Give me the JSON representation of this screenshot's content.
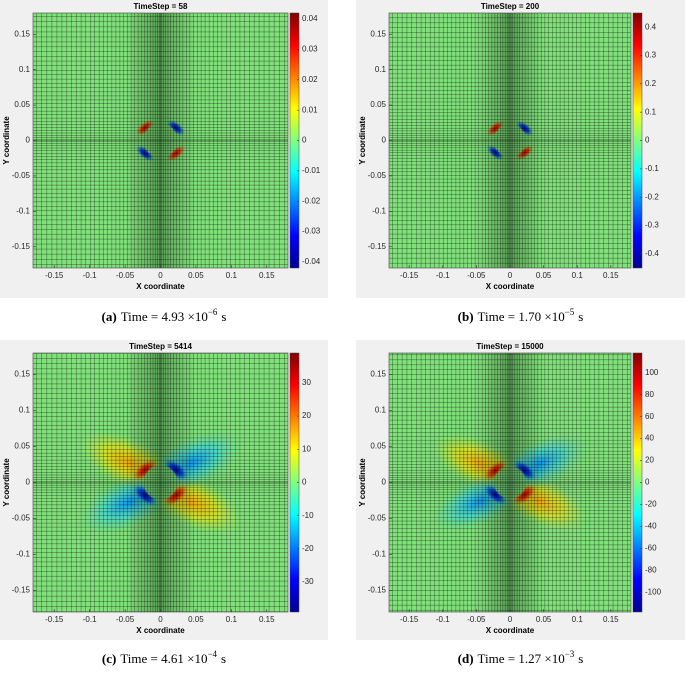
{
  "chart_data": [
    {
      "type": "field",
      "title": "TimeStep = 58",
      "xlabel": "X coordinate",
      "ylabel": "Y coordinate",
      "xlim": [
        -0.18,
        0.18
      ],
      "xticks": [
        -0.15,
        -0.1,
        -0.05,
        0,
        0.05,
        0.1,
        0.15
      ],
      "ylim": [
        -0.18,
        0.18
      ],
      "yticks": [
        -0.15,
        -0.1,
        -0.05,
        0,
        0.05,
        0.1,
        0.15
      ],
      "clim": [
        -0.042,
        0.042
      ],
      "cticks": [
        -0.04,
        -0.03,
        -0.02,
        -0.01,
        0,
        0.01,
        0.02,
        0.03,
        0.04
      ],
      "caption": {
        "label": "(a)",
        "text": "Time = 4.93 ×10",
        "exponent": "−6",
        "unit": "s"
      }
    },
    {
      "type": "field",
      "title": "TimeStep = 200",
      "xlabel": "X coordinate",
      "ylabel": "Y coordinate",
      "xlim": [
        -0.18,
        0.18
      ],
      "xticks": [
        -0.15,
        -0.1,
        -0.05,
        0,
        0.05,
        0.1,
        0.15
      ],
      "ylim": [
        -0.18,
        0.18
      ],
      "yticks": [
        -0.15,
        -0.1,
        -0.05,
        0,
        0.05,
        0.1,
        0.15
      ],
      "clim": [
        -0.45,
        0.45
      ],
      "cticks": [
        -0.4,
        -0.3,
        -0.2,
        -0.1,
        0,
        0.1,
        0.2,
        0.3,
        0.4
      ],
      "caption": {
        "label": "(b)",
        "text": "Time = 1.70 ×10",
        "exponent": "−5",
        "unit": "s"
      }
    },
    {
      "type": "field",
      "title": "TimeStep = 5414",
      "xlabel": "X coordinate",
      "ylabel": "Y coordinate",
      "xlim": [
        -0.18,
        0.18
      ],
      "xticks": [
        -0.15,
        -0.1,
        -0.05,
        0,
        0.05,
        0.1,
        0.15
      ],
      "ylim": [
        -0.18,
        0.18
      ],
      "yticks": [
        -0.15,
        -0.1,
        -0.05,
        0,
        0.05,
        0.1,
        0.15
      ],
      "clim": [
        -39,
        39
      ],
      "cticks": [
        -30,
        -20,
        -10,
        0,
        10,
        20,
        30
      ],
      "caption": {
        "label": "(c)",
        "text": "Time = 4.61 ×10",
        "exponent": "−4",
        "unit": "s"
      }
    },
    {
      "type": "field",
      "title": "TimeStep = 15000",
      "xlabel": "X coordinate",
      "ylabel": "Y coordinate",
      "xlim": [
        -0.18,
        0.18
      ],
      "xticks": [
        -0.15,
        -0.1,
        -0.05,
        0,
        0.05,
        0.1,
        0.15
      ],
      "ylim": [
        -0.18,
        0.18
      ],
      "yticks": [
        -0.15,
        -0.1,
        -0.05,
        0,
        0.05,
        0.1,
        0.15
      ],
      "clim": [
        -118,
        118
      ],
      "cticks": [
        -100,
        -80,
        -60,
        -40,
        -20,
        0,
        20,
        40,
        60,
        80,
        100
      ],
      "caption": {
        "label": "(d)",
        "text": "Time = 1.27 ×10",
        "exponent": "−3",
        "unit": "s"
      }
    }
  ]
}
